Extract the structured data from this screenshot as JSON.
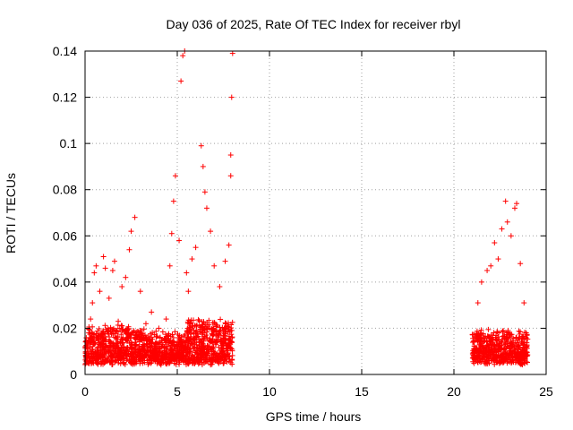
{
  "chart_data": {
    "type": "scatter",
    "title": "Day 036 of 2025, Rate Of TEC Index for receiver rbyl",
    "xlabel": "GPS time / hours",
    "ylabel": "ROTI / TECUs",
    "xlim": [
      0,
      25
    ],
    "ylim": [
      0,
      0.14
    ],
    "x_ticks": [
      "0",
      "5",
      "10",
      "15",
      "20",
      "25"
    ],
    "y_ticks": [
      "0",
      "0.02",
      "0.04",
      "0.06",
      "0.08",
      "0.1",
      "0.12",
      "0.14"
    ],
    "grid": true,
    "marker": "+",
    "series": [
      {
        "name": "ROTI",
        "color": "#ff0000",
        "points": [
          [
            0.1,
            0.012
          ],
          [
            0.2,
            0.018
          ],
          [
            0.3,
            0.024
          ],
          [
            0.4,
            0.031
          ],
          [
            0.5,
            0.044
          ],
          [
            0.6,
            0.047
          ],
          [
            0.8,
            0.036
          ],
          [
            1.0,
            0.051
          ],
          [
            1.1,
            0.046
          ],
          [
            1.3,
            0.033
          ],
          [
            1.5,
            0.045
          ],
          [
            1.6,
            0.049
          ],
          [
            1.8,
            0.023
          ],
          [
            2.0,
            0.038
          ],
          [
            2.2,
            0.042
          ],
          [
            2.4,
            0.054
          ],
          [
            2.5,
            0.062
          ],
          [
            2.7,
            0.068
          ],
          [
            3.0,
            0.036
          ],
          [
            3.3,
            0.022
          ],
          [
            3.6,
            0.027
          ],
          [
            4.0,
            0.02
          ],
          [
            4.4,
            0.024
          ],
          [
            4.6,
            0.047
          ],
          [
            4.7,
            0.061
          ],
          [
            4.8,
            0.075
          ],
          [
            4.9,
            0.086
          ],
          [
            5.1,
            0.058
          ],
          [
            5.2,
            0.127
          ],
          [
            5.3,
            0.138
          ],
          [
            5.4,
            0.14
          ],
          [
            5.5,
            0.044
          ],
          [
            5.6,
            0.036
          ],
          [
            5.8,
            0.05
          ],
          [
            6.0,
            0.055
          ],
          [
            6.3,
            0.099
          ],
          [
            6.4,
            0.09
          ],
          [
            6.5,
            0.079
          ],
          [
            6.6,
            0.072
          ],
          [
            6.8,
            0.062
          ],
          [
            7.0,
            0.047
          ],
          [
            7.3,
            0.038
          ],
          [
            7.6,
            0.049
          ],
          [
            7.8,
            0.056
          ],
          [
            7.9,
            0.095
          ],
          [
            7.95,
            0.12
          ],
          [
            8.0,
            0.139
          ],
          [
            7.9,
            0.086
          ],
          [
            21.3,
            0.031
          ],
          [
            21.5,
            0.04
          ],
          [
            21.8,
            0.045
          ],
          [
            22.0,
            0.047
          ],
          [
            22.2,
            0.057
          ],
          [
            22.4,
            0.05
          ],
          [
            22.6,
            0.063
          ],
          [
            22.8,
            0.075
          ],
          [
            22.9,
            0.066
          ],
          [
            23.1,
            0.06
          ],
          [
            23.3,
            0.072
          ],
          [
            23.4,
            0.074
          ],
          [
            23.6,
            0.048
          ],
          [
            23.8,
            0.031
          ]
        ]
      }
    ]
  }
}
